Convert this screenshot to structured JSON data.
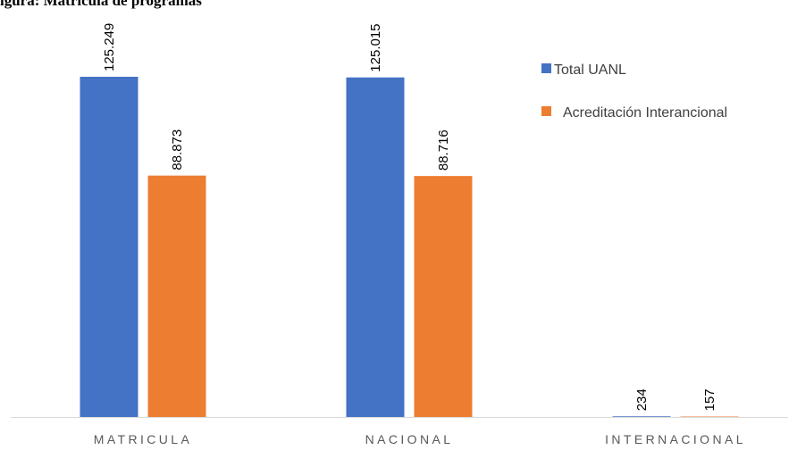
{
  "caption": "igura: Matrícula de programas",
  "chart_data": {
    "type": "bar",
    "title": "",
    "xlabel": "",
    "ylabel": "",
    "categories": [
      "MATRICULA",
      "NACIONAL",
      "INTERNACIONAL"
    ],
    "series": [
      {
        "name": "Total UANL",
        "color": "#4472C4",
        "values": [
          125249,
          125015,
          234
        ],
        "labels": [
          "125.249",
          "125.015",
          "234"
        ]
      },
      {
        "name": "Acreditación Interancional",
        "color": "#ED7D31",
        "values": [
          88873,
          88716,
          157
        ],
        "labels": [
          "88.873",
          "88.716",
          "157"
        ]
      }
    ],
    "ylim": [
      0,
      125249
    ],
    "grid": false,
    "legend_position": "top-right",
    "axis_color": "#D9D9D9"
  }
}
